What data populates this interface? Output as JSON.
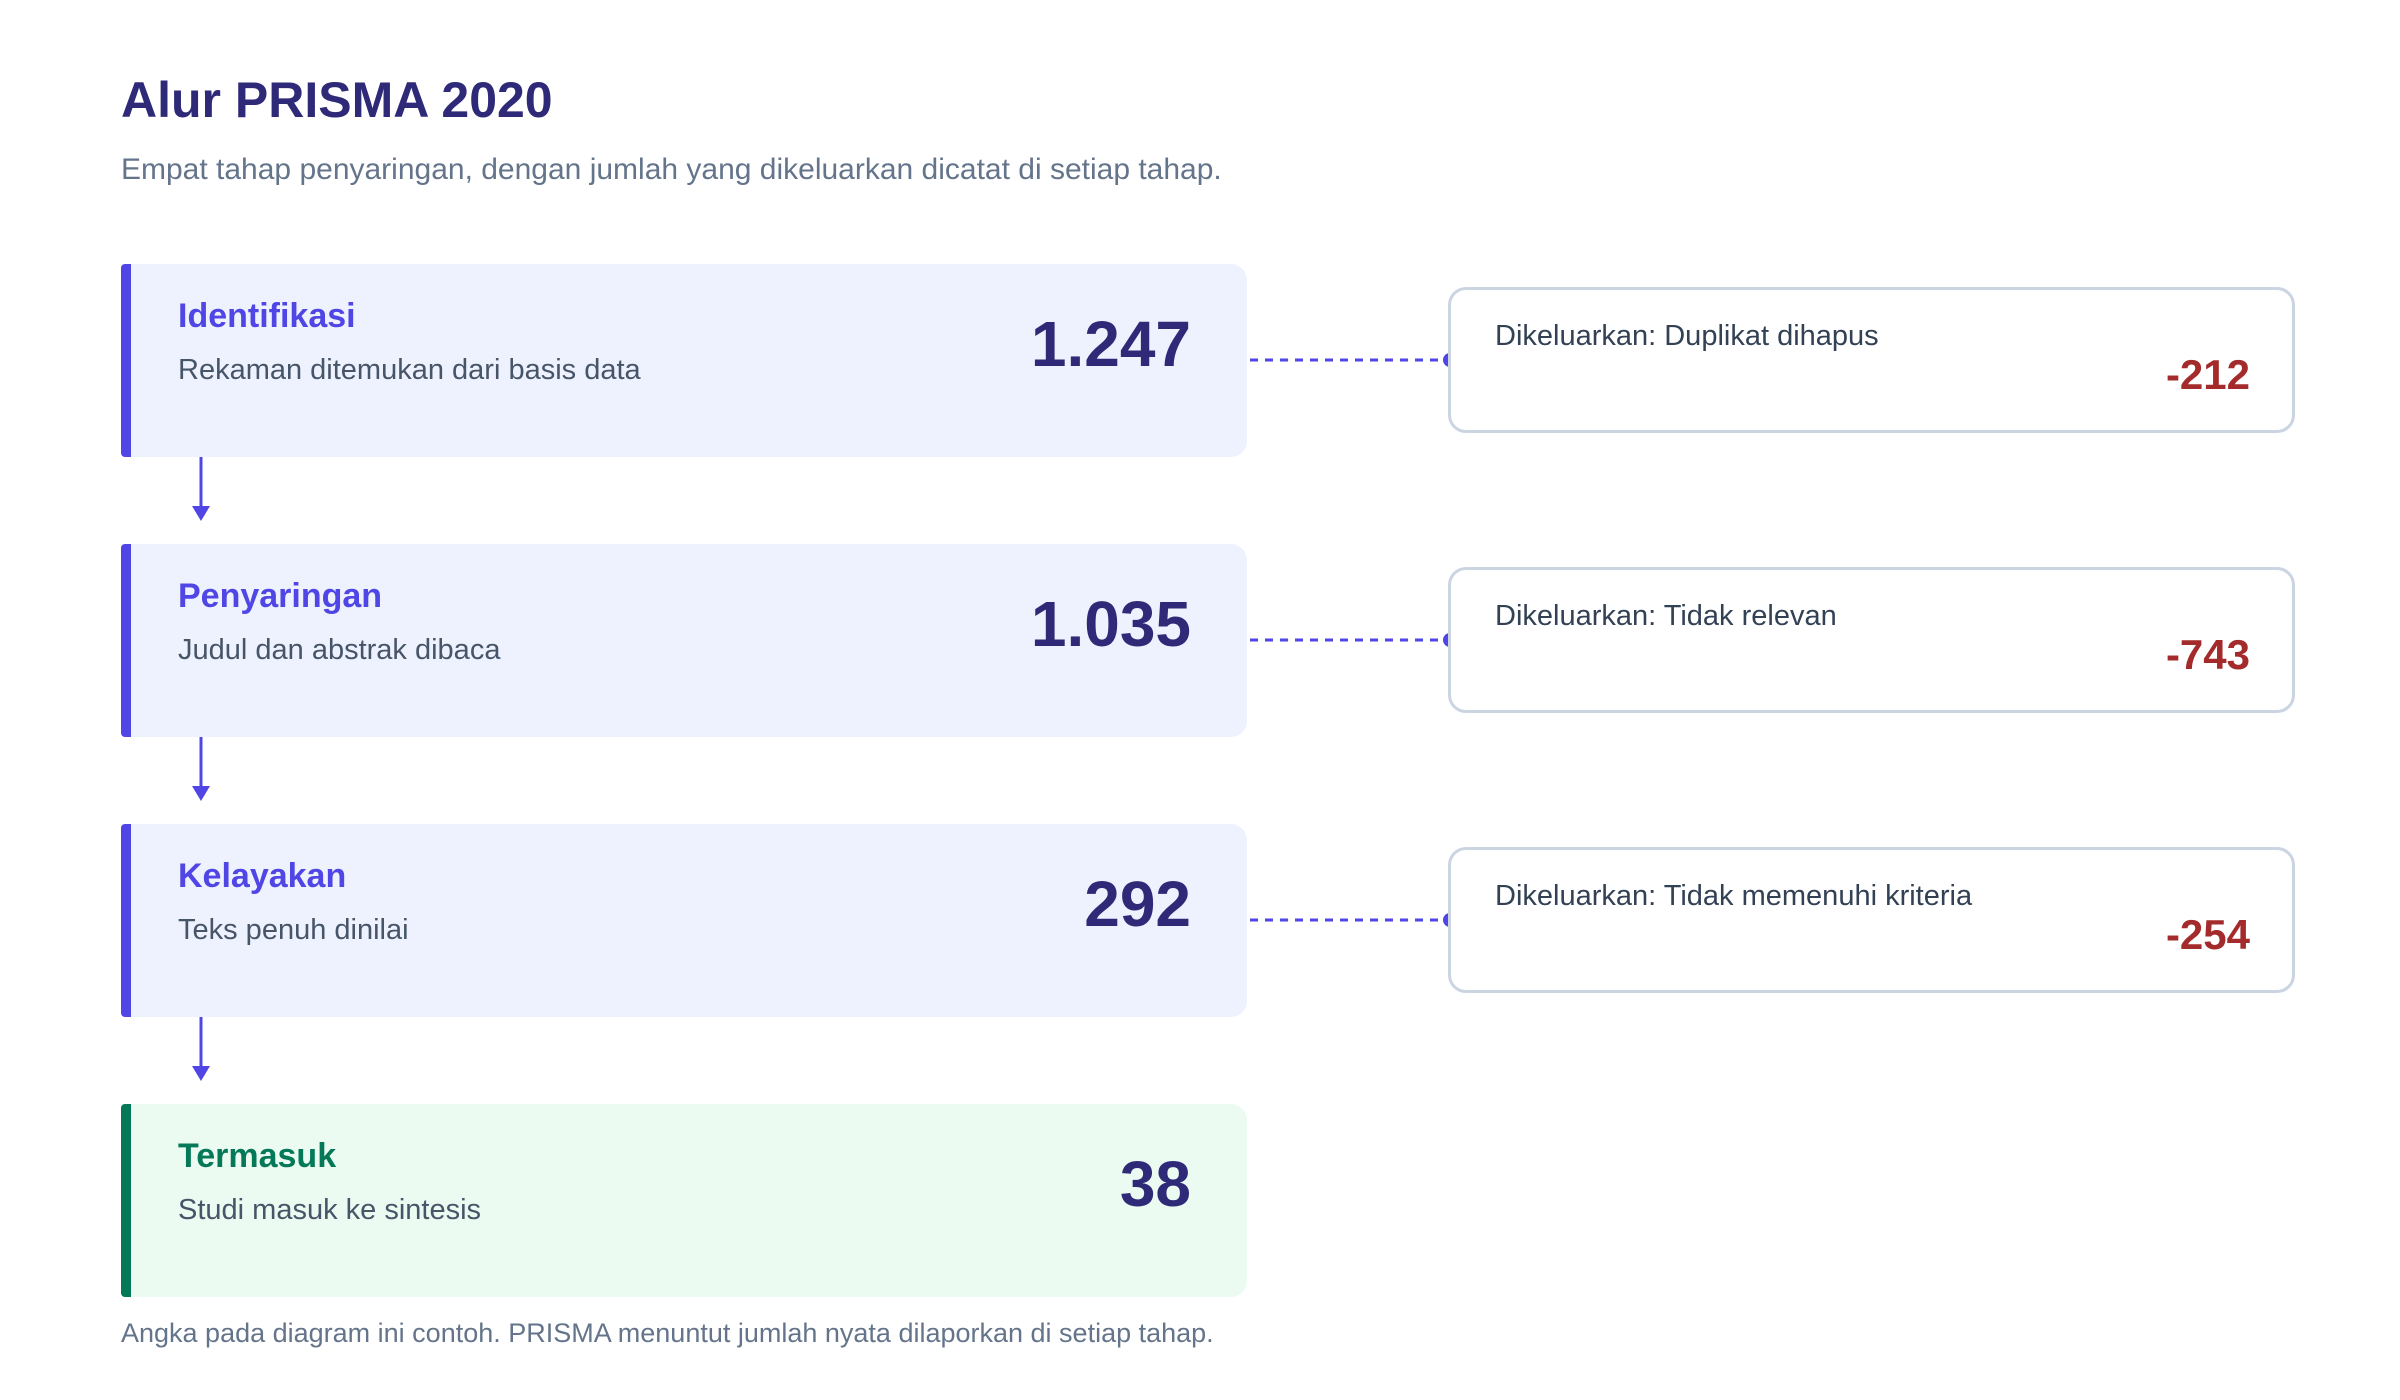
{
  "title": "Alur PRISMA 2020",
  "subtitle": "Empat tahap penyaringan, dengan jumlah yang dikeluarkan dicatat di setiap tahap.",
  "colors": {
    "accent": "#4f46e5",
    "final": "#047857",
    "excluded": "#a32b2b",
    "heading": "#2e2a78"
  },
  "stages": [
    {
      "title": "Identifikasi",
      "desc": "Rekaman ditemukan dari basis data",
      "count": "1.247"
    },
    {
      "title": "Penyaringan",
      "desc": "Judul dan abstrak dibaca",
      "count": "1.035"
    },
    {
      "title": "Kelayakan",
      "desc": "Teks penuh dinilai",
      "count": "292"
    },
    {
      "title": "Termasuk",
      "desc": "Studi masuk ke sintesis",
      "count": "38"
    }
  ],
  "exclusions": [
    {
      "label": "Dikeluarkan: Duplikat dihapus",
      "count": "-212"
    },
    {
      "label": "Dikeluarkan: Tidak relevan",
      "count": "-743"
    },
    {
      "label": "Dikeluarkan: Tidak memenuhi kriteria",
      "count": "-254"
    }
  ],
  "footnote": "Angka pada diagram ini contoh. PRISMA menuntut jumlah nyata dilaporkan di setiap tahap."
}
